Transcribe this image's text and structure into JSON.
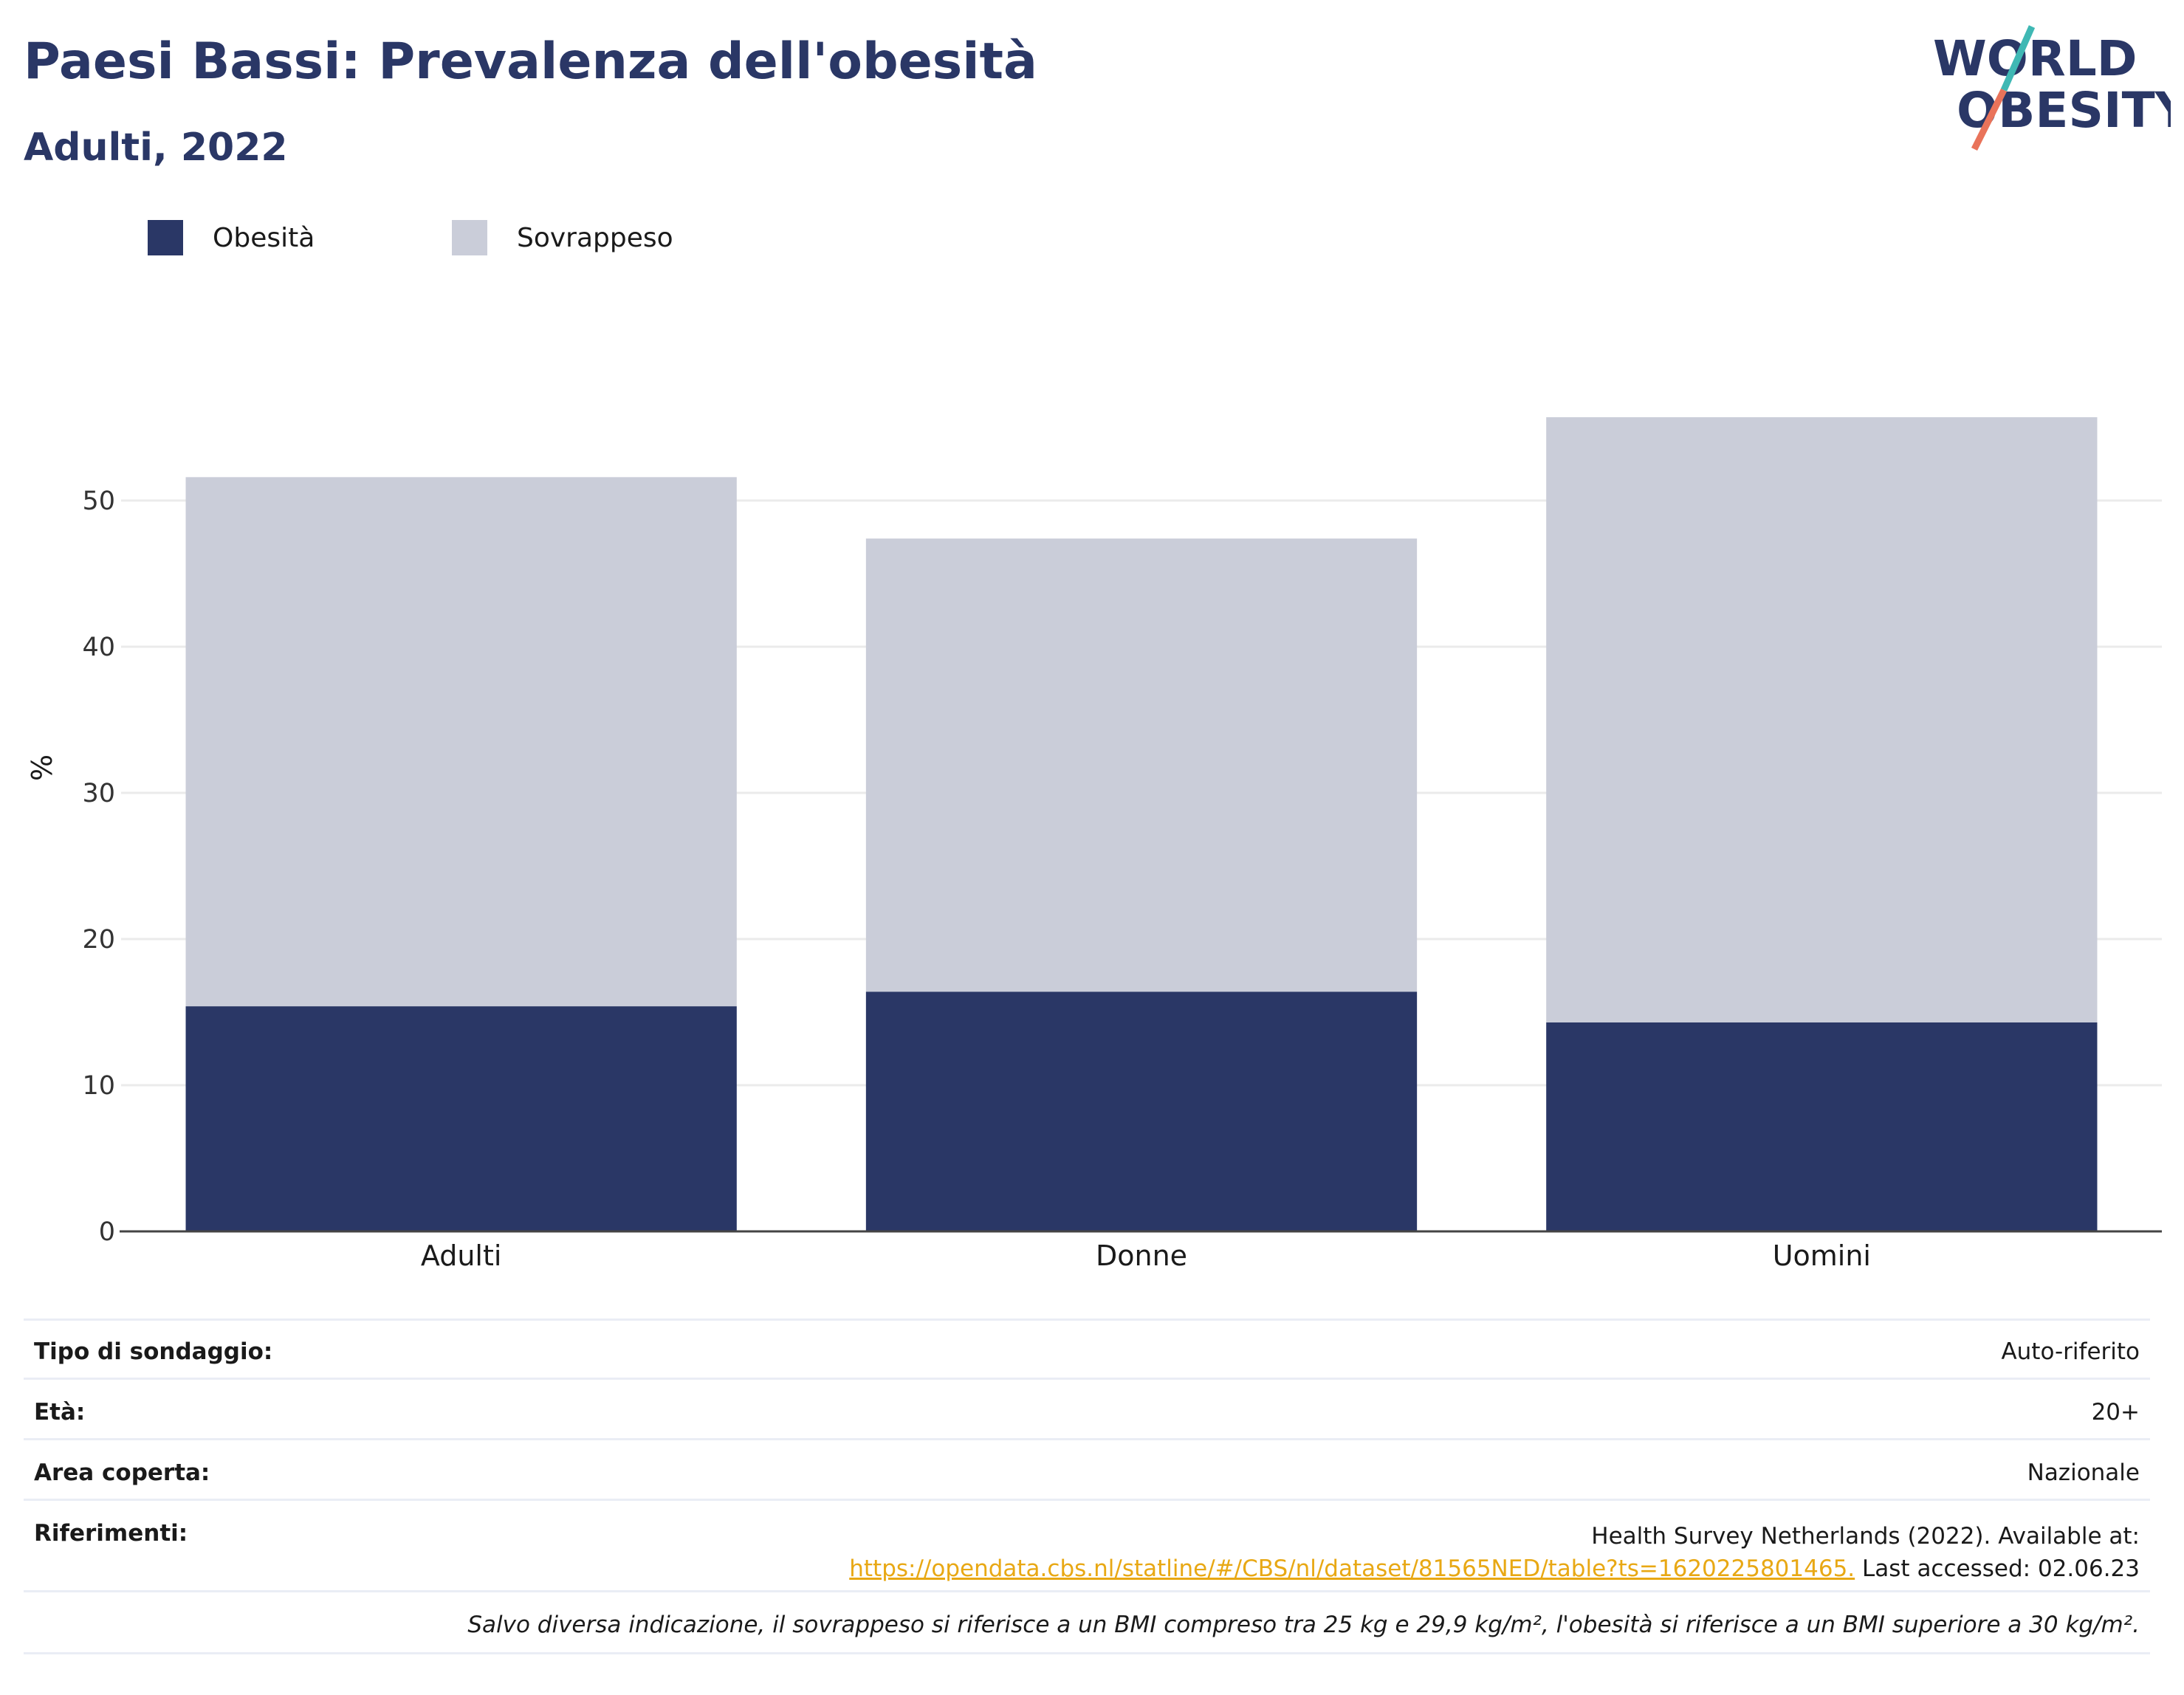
{
  "header": {
    "title": "Paesi Bassi: Prevalenza dell'obesità",
    "subtitle": "Adulti, 2022"
  },
  "logo": {
    "line1": "WORLD",
    "line2": "OBESITY",
    "colors": {
      "text": "#2a3766",
      "slash_top": "#3fb8b4",
      "slash_bottom": "#e9735a"
    }
  },
  "colors": {
    "obesity": "#2a3766",
    "overweight": "#cacdd9",
    "grid": "#ebebeb",
    "axis": "#444444"
  },
  "chart_data": {
    "type": "bar",
    "stacked": true,
    "categories": [
      "Adulti",
      "Donne",
      "Uomini"
    ],
    "series": [
      {
        "name": "Obesità",
        "values": [
          15.4,
          16.4,
          14.3
        ],
        "color": "#2a3766"
      },
      {
        "name": "Sovrappeso",
        "values": [
          36.2,
          31.0,
          41.4
        ],
        "color": "#cacdd9"
      }
    ],
    "ylabel": "%",
    "ylim": [
      0,
      60
    ],
    "yticks": [
      0,
      10,
      20,
      30,
      40,
      50
    ],
    "grid": true,
    "legend": "top-left"
  },
  "info": {
    "survey_type_label": "Tipo di sondaggio:",
    "survey_type_value": "Auto-riferito",
    "age_label": "Età:",
    "age_value": "20+",
    "area_label": "Area coperta:",
    "area_value": "Nazionale",
    "references_label": "Riferimenti:",
    "references_line1": "Health Survey Netherlands (2022). Available at:",
    "references_link": "https://opendata.cbs.nl/statline/#/CBS/nl/dataset/81565NED/table?ts=1620225801465.",
    "references_accessed": " Last accessed: 02.06.23",
    "note": "Salvo diversa indicazione, il sovrappeso si riferisce a un BMI compreso tra 25 kg e 29,9 kg/m², l'obesità si riferisce a un BMI superiore a 30 kg/m²."
  }
}
